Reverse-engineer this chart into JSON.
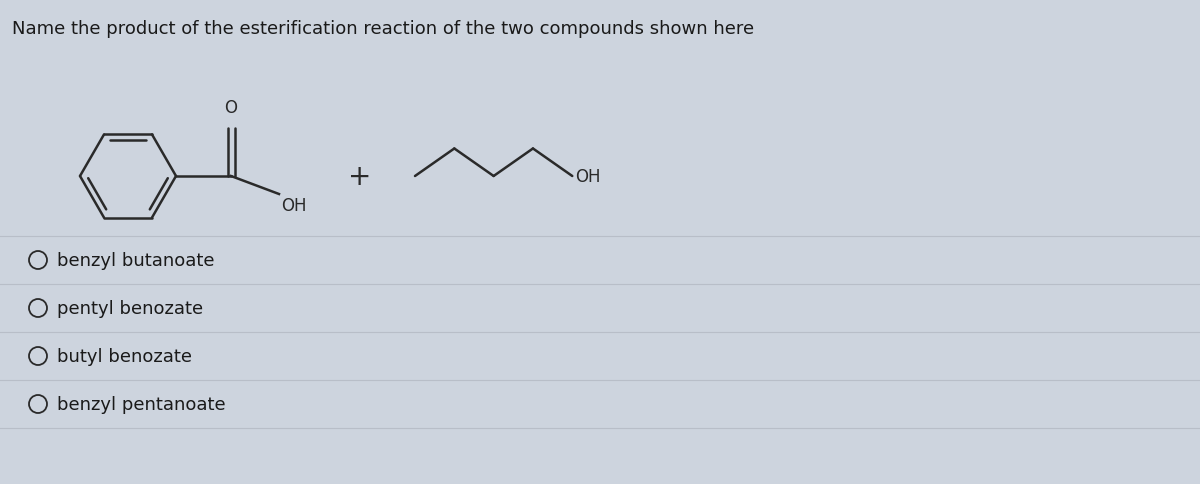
{
  "title": "Name the product of the esterification reaction of the two compounds shown here",
  "background_color": "#cdd4de",
  "text_color": "#1a1a1a",
  "options": [
    "benzyl butanoate",
    "pentyl benozate",
    "butyl benozate",
    "benzyl pentanoate"
  ],
  "title_fontsize": 13,
  "option_fontsize": 13,
  "fig_width": 12.0,
  "fig_height": 4.85,
  "line_color": "#2a2a2a",
  "divider_color": "#b8bec8"
}
